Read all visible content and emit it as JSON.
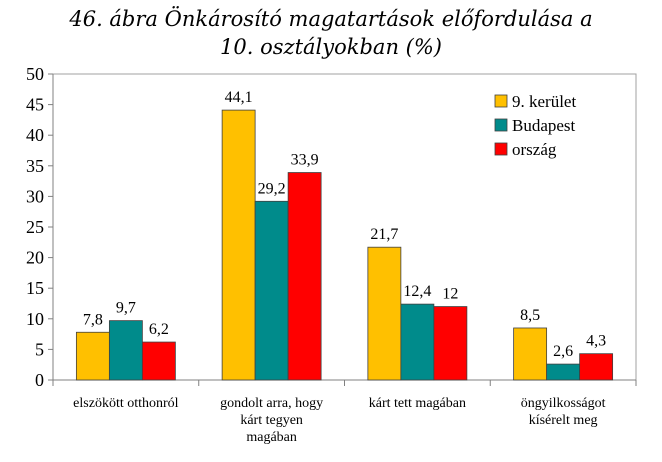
{
  "chart_data": {
    "type": "bar",
    "title_lines": [
      "46. ábra Önkárosító magatartások előfordulása a",
      "10. osztályokban (%)"
    ],
    "categories": [
      [
        "elszökött otthonról"
      ],
      [
        "gondolt arra, hogy",
        "kárt tegyen",
        "magában"
      ],
      [
        "kárt tett magában"
      ],
      [
        "öngyilkosságot",
        "kísérelt meg"
      ]
    ],
    "series": [
      {
        "name": "9. kerület",
        "color": "#FFC000",
        "values": [
          7.8,
          44.1,
          21.7,
          8.5
        ],
        "labels": [
          "7,8",
          "44,1",
          "21,7",
          "8,5"
        ]
      },
      {
        "name": "Budapest",
        "color": "#008B8B",
        "values": [
          9.7,
          29.2,
          12.4,
          2.6
        ],
        "labels": [
          "9,7",
          "29,2",
          "12,4",
          "2,6"
        ]
      },
      {
        "name": "ország",
        "color": "#FF0000",
        "values": [
          6.2,
          33.9,
          12,
          4.3
        ],
        "labels": [
          "6,2",
          "33,9",
          "12",
          "4,3"
        ]
      }
    ],
    "ylim": [
      0,
      50
    ],
    "yticks": [
      0,
      5,
      10,
      15,
      20,
      25,
      30,
      35,
      40,
      45,
      50
    ],
    "grid": false,
    "legend_position": "top-right"
  }
}
